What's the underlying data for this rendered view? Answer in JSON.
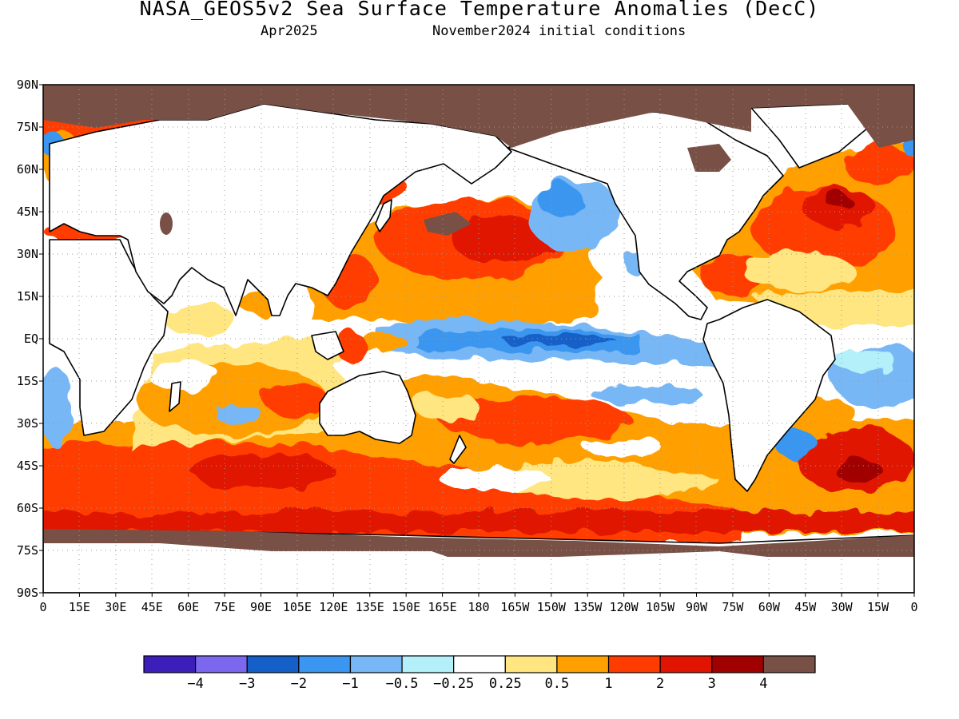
{
  "header": {
    "title": "NASA_GEOS5v2 Sea Surface Temperature Anomalies (DecC)",
    "valid_month": "Apr2025",
    "initial_conditions": "November2024 initial conditions"
  },
  "axes": {
    "lat_labels": [
      "90N",
      "75N",
      "60N",
      "45N",
      "30N",
      "15N",
      "EQ",
      "15S",
      "30S",
      "45S",
      "60S",
      "75S",
      "90S"
    ],
    "lon_labels": [
      "0",
      "15E",
      "30E",
      "45E",
      "60E",
      "75E",
      "90E",
      "105E",
      "120E",
      "135E",
      "150E",
      "165E",
      "180",
      "165W",
      "150W",
      "135W",
      "120W",
      "105W",
      "90W",
      "75W",
      "60W",
      "45W",
      "30W",
      "15W",
      "0"
    ]
  },
  "colorbar": {
    "colors": [
      "#3c1fba",
      "#7b68ee",
      "#1560c8",
      "#3a96f0",
      "#78b7f5",
      "#b4f0fa",
      "#ffffff",
      "#ffe680",
      "#ffa000",
      "#ff3c00",
      "#e01400",
      "#a00000",
      "#785046"
    ],
    "labels": [
      "−4",
      "−3",
      "−2",
      "−1",
      "−0.5",
      "−0.25",
      "0.25",
      "0.5",
      "1",
      "2",
      "3",
      "4"
    ]
  },
  "colors": {
    "land_ice": "#785046",
    "ocean_neutral": "#ffffff",
    "coast": "#000000",
    "grid": "#9a9a9a"
  }
}
